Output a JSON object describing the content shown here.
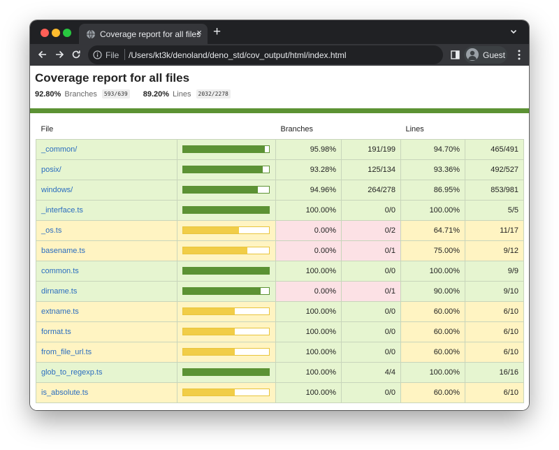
{
  "browser": {
    "tab_title": "Coverage report for all files",
    "tab_close": "×",
    "new_tab": "+",
    "omnibox_scheme": "File",
    "url": "/Users/kt3k/denoland/deno_std/cov_output/html/index.html",
    "profile_name": "Guest"
  },
  "page": {
    "title": "Coverage report for all files",
    "summary": {
      "branches": {
        "pct": "92.80%",
        "label": "Branches",
        "fraction": "593/639"
      },
      "lines": {
        "pct": "89.20%",
        "label": "Lines",
        "fraction": "2032/2278"
      }
    },
    "columns": {
      "file": "File",
      "branches": "Branches",
      "lines": "Lines"
    }
  },
  "colors": {
    "high": "#e6f5d0",
    "medium": "#fff4c2",
    "low": "#fce1e5",
    "bar_high": "#5c9234",
    "bar_medium": "#f1cd47",
    "link": "#2b6dbf"
  },
  "rows": [
    {
      "file": "_common/",
      "coverage": 0.95,
      "level": "high",
      "branch_pct": "95.98%",
      "branch_frac": "191/199",
      "branch_level": "high",
      "line_pct": "94.70%",
      "line_frac": "465/491",
      "line_level": "high"
    },
    {
      "file": "posix/",
      "coverage": 0.93,
      "level": "high",
      "branch_pct": "93.28%",
      "branch_frac": "125/134",
      "branch_level": "high",
      "line_pct": "93.36%",
      "line_frac": "492/527",
      "line_level": "high"
    },
    {
      "file": "windows/",
      "coverage": 0.87,
      "level": "high",
      "branch_pct": "94.96%",
      "branch_frac": "264/278",
      "branch_level": "high",
      "line_pct": "86.95%",
      "line_frac": "853/981",
      "line_level": "high"
    },
    {
      "file": "_interface.ts",
      "coverage": 1.0,
      "level": "high",
      "branch_pct": "100.00%",
      "branch_frac": "0/0",
      "branch_level": "high",
      "line_pct": "100.00%",
      "line_frac": "5/5",
      "line_level": "high"
    },
    {
      "file": "_os.ts",
      "coverage": 0.65,
      "level": "medium",
      "branch_pct": "0.00%",
      "branch_frac": "0/2",
      "branch_level": "low",
      "line_pct": "64.71%",
      "line_frac": "11/17",
      "line_level": "medium"
    },
    {
      "file": "basename.ts",
      "coverage": 0.75,
      "level": "medium",
      "branch_pct": "0.00%",
      "branch_frac": "0/1",
      "branch_level": "low",
      "line_pct": "75.00%",
      "line_frac": "9/12",
      "line_level": "medium"
    },
    {
      "file": "common.ts",
      "coverage": 1.0,
      "level": "high",
      "branch_pct": "100.00%",
      "branch_frac": "0/0",
      "branch_level": "high",
      "line_pct": "100.00%",
      "line_frac": "9/9",
      "line_level": "high"
    },
    {
      "file": "dirname.ts",
      "coverage": 0.9,
      "level": "high",
      "branch_pct": "0.00%",
      "branch_frac": "0/1",
      "branch_level": "low",
      "line_pct": "90.00%",
      "line_frac": "9/10",
      "line_level": "high"
    },
    {
      "file": "extname.ts",
      "coverage": 0.6,
      "level": "medium",
      "branch_pct": "100.00%",
      "branch_frac": "0/0",
      "branch_level": "high",
      "line_pct": "60.00%",
      "line_frac": "6/10",
      "line_level": "medium"
    },
    {
      "file": "format.ts",
      "coverage": 0.6,
      "level": "medium",
      "branch_pct": "100.00%",
      "branch_frac": "0/0",
      "branch_level": "high",
      "line_pct": "60.00%",
      "line_frac": "6/10",
      "line_level": "medium"
    },
    {
      "file": "from_file_url.ts",
      "coverage": 0.6,
      "level": "medium",
      "branch_pct": "100.00%",
      "branch_frac": "0/0",
      "branch_level": "high",
      "line_pct": "60.00%",
      "line_frac": "6/10",
      "line_level": "medium"
    },
    {
      "file": "glob_to_regexp.ts",
      "coverage": 1.0,
      "level": "high",
      "branch_pct": "100.00%",
      "branch_frac": "4/4",
      "branch_level": "high",
      "line_pct": "100.00%",
      "line_frac": "16/16",
      "line_level": "high"
    },
    {
      "file": "is_absolute.ts",
      "coverage": 0.6,
      "level": "medium",
      "branch_pct": "100.00%",
      "branch_frac": "0/0",
      "branch_level": "high",
      "line_pct": "60.00%",
      "line_frac": "6/10",
      "line_level": "medium"
    }
  ]
}
